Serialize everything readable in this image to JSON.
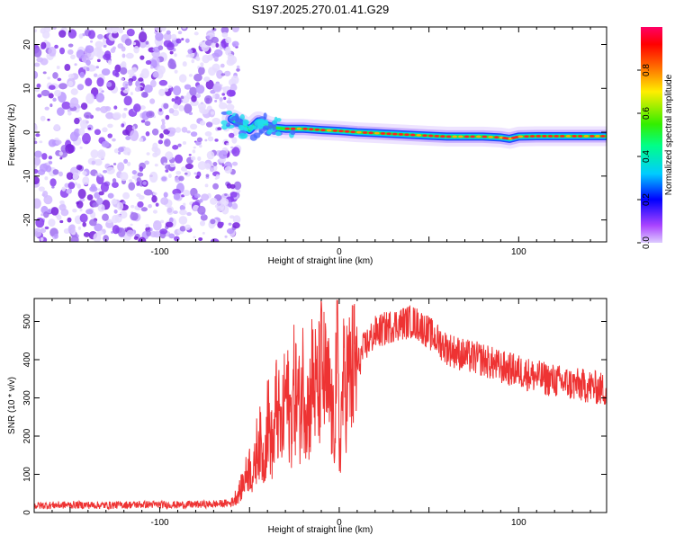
{
  "chart_data": [
    {
      "type": "heatmap",
      "title": "S197.2025.270.01.41.G29",
      "xlabel": "Height of straight line (km)",
      "ylabel": "Frequency (Hz)",
      "xlim": [
        -170,
        149
      ],
      "ylim": [
        -25,
        24
      ],
      "xticks": [
        -100,
        0,
        100
      ],
      "yticks": [
        -20,
        -10,
        0,
        10,
        20
      ],
      "noise_region_x": [
        -170,
        -60
      ],
      "signal_ridge": {
        "x": [
          -60,
          -55,
          -50,
          -45,
          -40,
          -35,
          -30,
          -20,
          -10,
          0,
          10,
          20,
          30,
          40,
          50,
          60,
          70,
          80,
          90,
          95,
          100,
          110,
          120,
          130,
          140,
          149
        ],
        "frequency": [
          3.0,
          2.0,
          0.5,
          2.5,
          1.5,
          1.0,
          0.8,
          0.8,
          0.5,
          0.3,
          0.0,
          -0.2,
          -0.4,
          -0.6,
          -0.8,
          -1.0,
          -1.0,
          -1.0,
          -1.2,
          -1.5,
          -1.0,
          -0.9,
          -0.9,
          -0.9,
          -0.9,
          -0.9
        ]
      },
      "colorbar": {
        "label": "Normalized spectral amplitude",
        "ticks": [
          "0.0",
          "0.2",
          "0.4",
          "0.6",
          "0.8"
        ],
        "range": [
          0,
          1
        ]
      }
    },
    {
      "type": "line",
      "xlabel": "Height of straight line (km)",
      "ylabel": "SNR (10 * v/v)",
      "xlim": [
        -170,
        149
      ],
      "ylim": [
        0,
        560
      ],
      "xticks": [
        -100,
        0,
        100
      ],
      "yticks": [
        0,
        100,
        200,
        300,
        400,
        500
      ],
      "series": [
        {
          "name": "SNR",
          "color": "#ee3333",
          "x": [
            -170,
            -150,
            -130,
            -110,
            -90,
            -70,
            -60,
            -55,
            -50,
            -48,
            -45,
            -42,
            -40,
            -37,
            -35,
            -32,
            -30,
            -27,
            -25,
            -22,
            -20,
            -17,
            -15,
            -12,
            -10,
            -7,
            -5,
            -3,
            -1,
            0,
            2,
            5,
            8,
            10,
            13,
            15,
            20,
            25,
            30,
            35,
            40,
            45,
            50,
            55,
            60,
            70,
            80,
            90,
            100,
            110,
            120,
            130,
            140,
            149
          ],
          "values": [
            18,
            20,
            19,
            21,
            20,
            22,
            25,
            60,
            120,
            90,
            200,
            130,
            250,
            160,
            280,
            200,
            320,
            240,
            330,
            270,
            350,
            260,
            360,
            300,
            380,
            320,
            300,
            200,
            480,
            140,
            330,
            350,
            370,
            380,
            420,
            440,
            470,
            480,
            490,
            495,
            500,
            490,
            470,
            450,
            430,
            410,
            400,
            380,
            370,
            355,
            345,
            335,
            330,
            320
          ]
        }
      ]
    }
  ]
}
